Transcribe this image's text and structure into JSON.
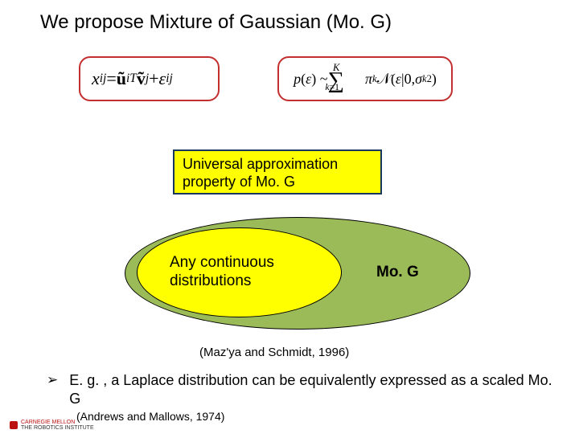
{
  "title": "We propose Mixture of Gaussian (Mo. G)",
  "equations": {
    "eq1_html": "<i>x</i><sub><i>ij</i></sub> = <b>ũ</b><sub><i>i</i></sub><sup><i>T</i></sup><b>ṽ</b><sub><i>j</i></sub> + <i>ε</i><sub><i>ij</i></sub>",
    "eq2_html": "<i>p</i>(<i>ε</i>) ~ <span class='sum'>∑</span><sup style='position:relative;top:-14px;left:-14px;font-size:0.7em'><i>K</i></sup><sub style='position:relative;left:-32px;top:10px;font-size:0.65em'><i>k</i>=1</sub> <i>π</i><sub><i>k</i></sub> 𝒩(<i>ε</i>|0, <i>σ</i><sub><i>k</i></sub><sup>2</sup>)",
    "border_color": "#c32f2f"
  },
  "uap": {
    "line1": "Universal approximation",
    "line2": "property of Mo. G",
    "bg": "#ffff00",
    "border": "#17375e"
  },
  "venn": {
    "outer_fill": "#9bbb59",
    "outer_border": "#000000",
    "inner_fill": "#ffff00",
    "inner_line1": "Any continuous",
    "inner_line2": "distributions",
    "mog_label": "Mo. G"
  },
  "citation1": "(Maz'ya and Schmidt, 1996)",
  "bullet": {
    "symbol": "➢",
    "text": "E. g. , a Laplace distribution can be equivalently expressed as a scaled Mo. G"
  },
  "citation2": "(Andrews and Mallows, 1974)",
  "logo": {
    "l1": "CARNEGIE MELLON",
    "l2": "THE ROBOTICS INSTITUTE"
  }
}
